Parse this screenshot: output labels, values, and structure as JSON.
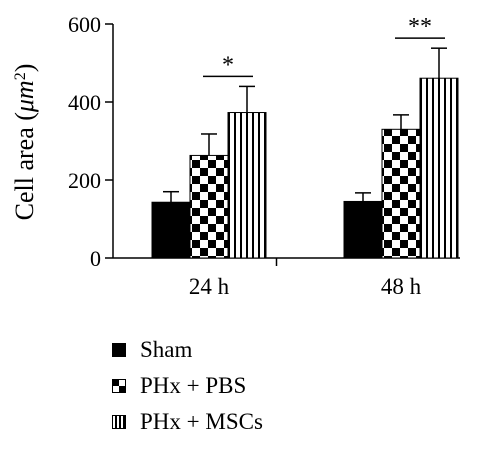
{
  "chart_data": {
    "type": "bar",
    "ylabel_main": "Cell area (",
    "ylabel_unit_um": "μm",
    "ylabel_unit_sup": "2",
    "ylabel_close": ")",
    "ylim": [
      0,
      600
    ],
    "yticks": [
      "0",
      "200",
      "400",
      "600"
    ],
    "ytick_values": [
      0,
      200,
      400,
      600
    ],
    "categories": [
      "24 h",
      "48 h"
    ],
    "series": [
      {
        "name": "Sham",
        "values": [
          143,
          145
        ],
        "errors": [
          27,
          22
        ],
        "pattern": "solid"
      },
      {
        "name": "PHx + PBS",
        "values": [
          263,
          330
        ],
        "errors": [
          55,
          37
        ],
        "pattern": "checker"
      },
      {
        "name": "PHx + MSCs",
        "values": [
          373,
          461
        ],
        "errors": [
          67,
          77
        ],
        "pattern": "vstripe"
      }
    ],
    "significance": [
      {
        "category": 0,
        "between": [
          "PHx + PBS",
          "PHx + MSCs"
        ],
        "label": "*"
      },
      {
        "category": 1,
        "between": [
          "PHx + PBS",
          "PHx + MSCs"
        ],
        "label": "**"
      }
    ],
    "grid": false,
    "legend_position": "bottom"
  }
}
